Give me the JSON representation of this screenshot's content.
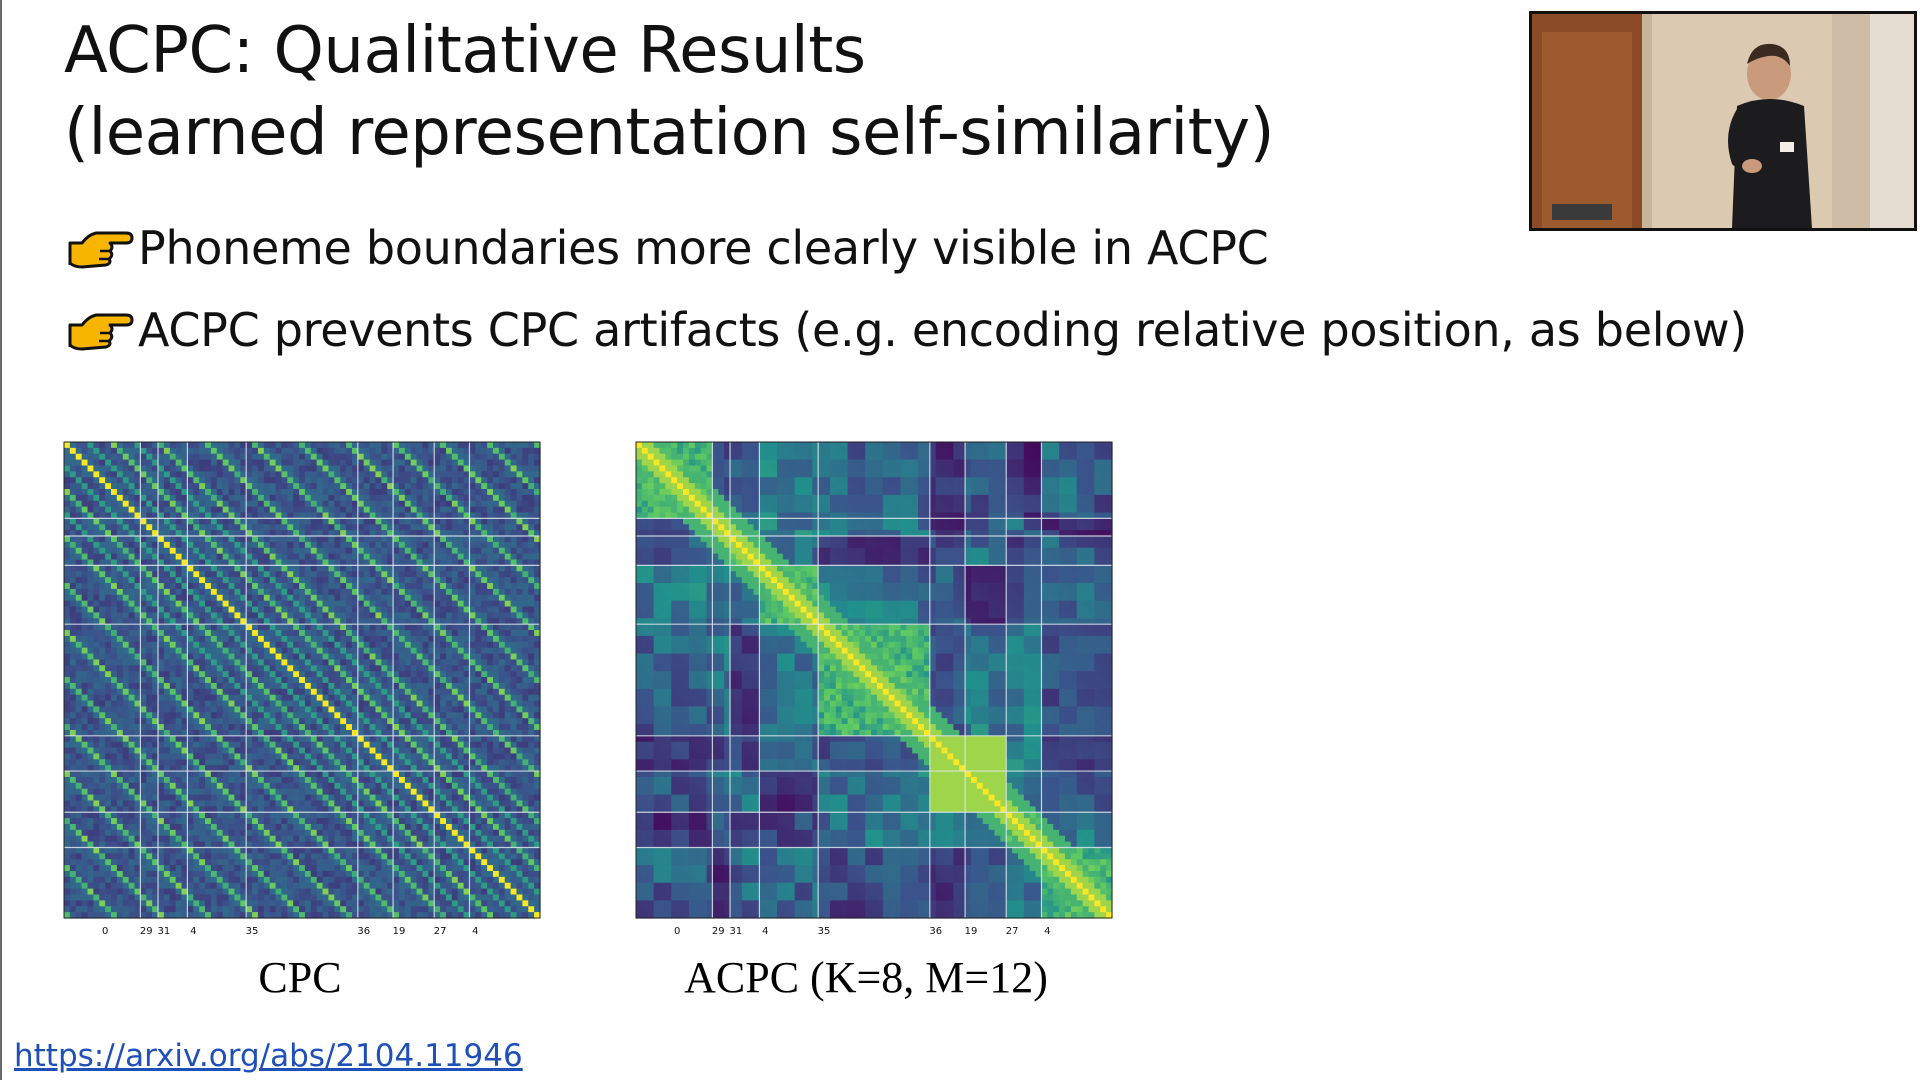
{
  "slide": {
    "title_lines": [
      "ACPC: Qualitative Results",
      "(learned representation self-similarity)"
    ],
    "bullets": [
      "Phoneme boundaries more clearly visible in ACPC",
      "ACPC prevents CPC artifacts (e.g. encoding relative position, as below)"
    ],
    "bullet_icon": "pointing-hand-icon",
    "link": "https://arxiv.org/abs/2104.11946"
  },
  "colors": {
    "text": "#111111",
    "link": "#1f4fb8",
    "colormap": [
      "#440154",
      "#3b528b",
      "#21918c",
      "#5ec962",
      "#fde725"
    ]
  },
  "chart_data": [
    {
      "type": "heatmap",
      "caption": "CPC",
      "tick_labels": [
        "0",
        "29",
        "31",
        "4",
        "35",
        "36",
        "19",
        "27",
        "4"
      ],
      "segment_boundaries": [
        0,
        13,
        16,
        21,
        31,
        50,
        56,
        63,
        69,
        81
      ],
      "grid_size": 81,
      "pattern": "relative-position stripes"
    },
    {
      "type": "heatmap",
      "caption": "ACPC (K=8, M=12)",
      "tick_labels": [
        "0",
        "29",
        "31",
        "4",
        "35",
        "36",
        "19",
        "27",
        "4"
      ],
      "segment_boundaries": [
        0,
        13,
        16,
        21,
        31,
        50,
        56,
        63,
        69,
        81
      ],
      "grid_size": 81,
      "pattern": "phoneme blocks"
    }
  ]
}
